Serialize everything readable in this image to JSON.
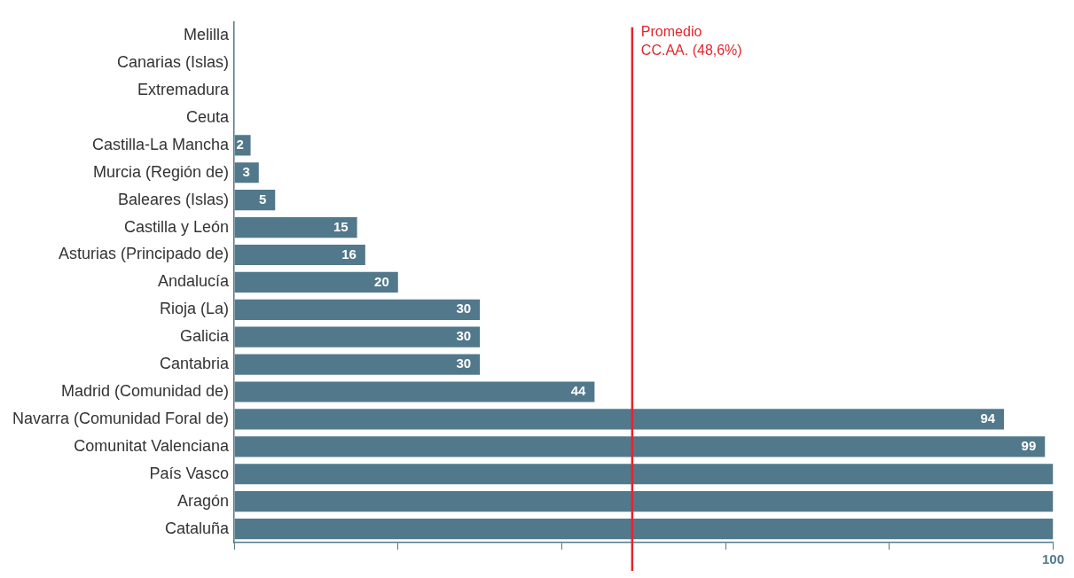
{
  "chart_data": {
    "type": "bar",
    "orientation": "horizontal",
    "categories": [
      "Melilla",
      "Canarias (Islas)",
      "Extremadura",
      "Ceuta",
      "Castilla-La Mancha",
      "Murcia (Región de)",
      "Baleares (Islas)",
      "Castilla y León",
      "Asturias (Principado de)",
      "Andalucía",
      "Rioja (La)",
      "Galicia",
      "Cantabria",
      "Madrid (Comunidad de)",
      "Navarra (Comunidad Foral de)",
      "Comunitat Valenciana",
      "País Vasco",
      "Aragón",
      "Cataluña"
    ],
    "values": [
      0,
      0,
      0,
      0,
      2,
      3,
      5,
      15,
      16,
      20,
      30,
      30,
      30,
      44,
      94,
      99,
      100,
      100,
      100
    ],
    "value_labels": [
      null,
      null,
      null,
      null,
      "2",
      "3",
      "5",
      "15",
      "16",
      "20",
      "30",
      "30",
      "30",
      "44",
      "94",
      "99",
      null,
      null,
      null
    ],
    "color": "#52788b",
    "xlim": [
      0,
      100
    ],
    "xticks": [
      {
        "value": 0,
        "label": null
      },
      {
        "value": 20,
        "label": null
      },
      {
        "value": 40,
        "label": null
      },
      {
        "value": 60,
        "label": null
      },
      {
        "value": 80,
        "label": null
      },
      100
    ],
    "ref_lines": [
      {
        "axis": "x",
        "value": 48.6,
        "label": "Promedio CC.AA. (48,6%)",
        "color": "#e3262e"
      }
    ]
  }
}
